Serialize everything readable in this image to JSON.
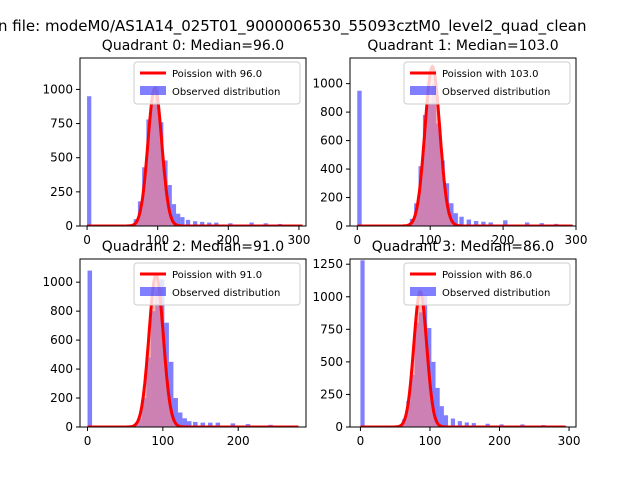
{
  "figure": {
    "suptitle": "n file: modeM0/AS1A14_025T01_9000006530_55093cztM0_level2_quad_clean"
  },
  "colors": {
    "poisson": "#ff0000",
    "poisson_fill": "#ff8080",
    "observed": "#0000ff",
    "observed_alpha": 0.5
  },
  "chart_data": [
    {
      "type": "bar",
      "title": "Quadrant 0: Median=96.0",
      "xlim": [
        -10,
        310
      ],
      "ylim": [
        0,
        1230
      ],
      "xticks": [
        0,
        100,
        200,
        300
      ],
      "yticks": [
        0,
        250,
        500,
        750,
        1000
      ],
      "legend": {
        "location": "top-right",
        "line_label": "Poission with 96.0",
        "bar_label": "Observed distribution"
      },
      "bin_width": 6,
      "observed": {
        "x": [
          0,
          60,
          66,
          72,
          78,
          84,
          90,
          96,
          102,
          108,
          114,
          120,
          126,
          132,
          140,
          150,
          160,
          170,
          180,
          200,
          230,
          250,
          270,
          290
        ],
        "y": [
          950,
          10,
          50,
          180,
          430,
          780,
          900,
          1020,
          760,
          480,
          300,
          160,
          90,
          65,
          45,
          35,
          30,
          25,
          25,
          20,
          25,
          20,
          15,
          8
        ]
      },
      "poisson": {
        "mean": 96.0,
        "peak": 1010,
        "sigma": 9.8,
        "x_range": [
          0,
          305
        ]
      }
    },
    {
      "type": "bar",
      "title": "Quadrant 1: Median=103.0",
      "xlim": [
        -10,
        300
      ],
      "ylim": [
        0,
        1180
      ],
      "xticks": [
        0,
        100,
        200,
        300
      ],
      "yticks": [
        0,
        200,
        400,
        600,
        800,
        1000
      ],
      "legend": {
        "location": "top-right",
        "line_label": "Poission with 103.0",
        "bar_label": "Observed distribution"
      },
      "bin_width": 6,
      "observed": {
        "x": [
          0,
          66,
          72,
          78,
          84,
          90,
          96,
          102,
          108,
          114,
          120,
          126,
          132,
          140,
          150,
          160,
          170,
          180,
          200,
          230,
          250,
          270,
          290
        ],
        "y": [
          950,
          10,
          50,
          160,
          420,
          780,
          860,
          1000,
          720,
          460,
          300,
          160,
          90,
          65,
          45,
          35,
          30,
          25,
          40,
          25,
          20,
          15,
          8
        ]
      },
      "poisson": {
        "mean": 103.0,
        "peak": 1120,
        "sigma": 10.2,
        "x_range": [
          0,
          295
        ]
      }
    },
    {
      "type": "bar",
      "title": "Quadrant 2: Median=91.0",
      "xlim": [
        -10,
        290
      ],
      "ylim": [
        0,
        1160
      ],
      "xticks": [
        0,
        100,
        200
      ],
      "yticks": [
        0,
        200,
        400,
        600,
        800,
        1000
      ],
      "legend": {
        "location": "top-right",
        "line_label": "Poission with 91.0",
        "bar_label": "Observed distribution"
      },
      "bin_width": 6,
      "observed": {
        "x": [
          0,
          60,
          66,
          72,
          78,
          84,
          90,
          96,
          102,
          108,
          114,
          120,
          126,
          132,
          140,
          150,
          160,
          170,
          190,
          210,
          240,
          270
        ],
        "y": [
          1080,
          10,
          60,
          200,
          480,
          800,
          940,
          1020,
          720,
          450,
          200,
          100,
          60,
          40,
          35,
          30,
          30,
          30,
          25,
          20,
          15,
          8
        ]
      },
      "poisson": {
        "mean": 91.0,
        "peak": 1050,
        "sigma": 9.5,
        "x_range": [
          0,
          280
        ]
      }
    },
    {
      "type": "bar",
      "title": "Quadrant 3: Median=86.0",
      "xlim": [
        -15,
        310
      ],
      "ylim": [
        0,
        1290
      ],
      "xticks": [
        0,
        100,
        200,
        300
      ],
      "yticks": [
        0,
        250,
        500,
        750,
        1000,
        1250
      ],
      "legend": {
        "location": "top-right",
        "line_label": "Poission with 86.0",
        "bar_label": "Observed distribution"
      },
      "bin_width": 6,
      "observed": {
        "x": [
          0,
          54,
          60,
          66,
          72,
          78,
          84,
          90,
          96,
          102,
          108,
          114,
          120,
          130,
          140,
          150,
          160,
          180,
          200,
          230,
          260,
          290
        ],
        "y": [
          1280,
          10,
          60,
          200,
          400,
          800,
          880,
          1010,
          760,
          500,
          300,
          160,
          90,
          65,
          45,
          35,
          30,
          25,
          20,
          20,
          15,
          8
        ]
      },
      "poisson": {
        "mean": 86.0,
        "peak": 1040,
        "sigma": 9.3,
        "x_range": [
          0,
          295
        ]
      }
    }
  ]
}
